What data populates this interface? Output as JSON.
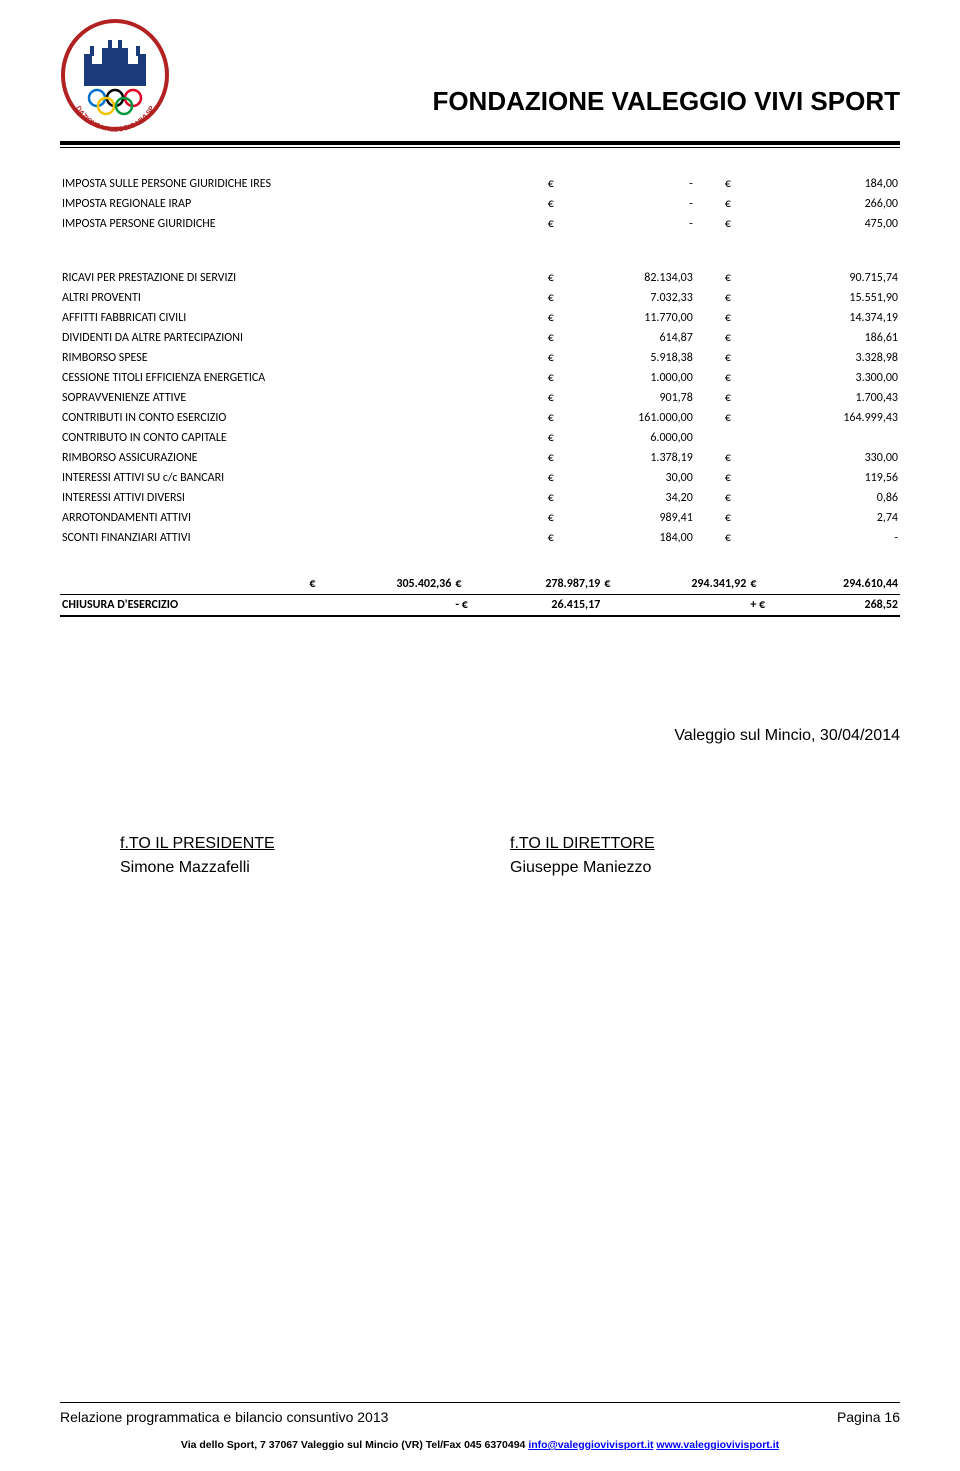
{
  "header": {
    "org_title": "FONDAZIONE VALEGGIO VIVI SPORT"
  },
  "rows_a": [
    {
      "label": "IMPOSTA SULLE PERSONE GIURIDICHE IRES",
      "c1s": "€",
      "c1": "-",
      "c2s": "€",
      "c2": "184,00"
    },
    {
      "label": "IMPOSTA REGIONALE IRAP",
      "c1s": "€",
      "c1": "-",
      "c2s": "€",
      "c2": "266,00"
    },
    {
      "label": "IMPOSTA PERSONE GIURIDICHE",
      "c1s": "€",
      "c1": "-",
      "c2s": "€",
      "c2": "475,00"
    }
  ],
  "rows_b": [
    {
      "label": "RICAVI PER PRESTAZIONE DI SERVIZI",
      "c1s": "€",
      "c1": "82.134,03",
      "c2s": "€",
      "c2": "90.715,74"
    },
    {
      "label": "ALTRI PROVENTI",
      "c1s": "€",
      "c1": "7.032,33",
      "c2s": "€",
      "c2": "15.551,90"
    },
    {
      "label": "AFFITTI FABBRICATI CIVILI",
      "c1s": "€",
      "c1": "11.770,00",
      "c2s": "€",
      "c2": "14.374,19"
    },
    {
      "label": "DIVIDENTI DA ALTRE PARTECIPAZIONI",
      "c1s": "€",
      "c1": "614,87",
      "c2s": "€",
      "c2": "186,61"
    },
    {
      "label": "RIMBORSO SPESE",
      "c1s": "€",
      "c1": "5.918,38",
      "c2s": "€",
      "c2": "3.328,98"
    },
    {
      "label": "CESSIONE TITOLI EFFICIENZA ENERGETICA",
      "c1s": "€",
      "c1": "1.000,00",
      "c2s": "€",
      "c2": "3.300,00"
    },
    {
      "label": "SOPRAVVENIENZE ATTIVE",
      "c1s": "€",
      "c1": "901,78",
      "c2s": "€",
      "c2": "1.700,43"
    },
    {
      "label": "CONTRIBUTI IN CONTO ESERCIZIO",
      "c1s": "€",
      "c1": "161.000,00",
      "c2s": "€",
      "c2": "164.999,43"
    },
    {
      "label": "CONTRIBUTO IN CONTO CAPITALE",
      "c1s": "€",
      "c1": "6.000,00",
      "c2s": "",
      "c2": ""
    },
    {
      "label": "RIMBORSO ASSICURAZIONE",
      "c1s": "€",
      "c1": "1.378,19",
      "c2s": "€",
      "c2": "330,00"
    },
    {
      "label": "INTERESSI ATTIVI SU c/c BANCARI",
      "c1s": "€",
      "c1": "30,00",
      "c2s": "€",
      "c2": "119,56"
    },
    {
      "label": "INTERESSI ATTIVI DIVERSI",
      "c1s": "€",
      "c1": "34,20",
      "c2s": "€",
      "c2": "0,86"
    },
    {
      "label": "ARROTONDAMENTI ATTIVI",
      "c1s": "€",
      "c1": "989,41",
      "c2s": "€",
      "c2": "2,74"
    },
    {
      "label": "SCONTI FINANZIARI ATTIVI",
      "c1s": "€",
      "c1": "184,00",
      "c2s": "€",
      "c2": "-"
    }
  ],
  "totals": {
    "t1s": "€",
    "t1": "305.402,36",
    "t2s": "€",
    "t2": "278.987,19",
    "t3s": "€",
    "t3": "294.341,92",
    "t4s": "€",
    "t4": "294.610,44"
  },
  "closing": {
    "label": "CHIUSURA D'ESERCIZIO",
    "c1s": "- €",
    "c1": "26.415,17",
    "c2s": "+ €",
    "c2": "268,52"
  },
  "sign": {
    "date": "Valeggio sul Mincio, 30/04/2014",
    "left_title": "f.TO IL PRESIDENTE",
    "left_name": "Simone Mazzafelli",
    "right_title": "f.TO IL DIRETTORE",
    "right_name": "Giuseppe Maniezzo"
  },
  "footer": {
    "doc_title": "Relazione programmatica e bilancio consuntivo 2013",
    "page_label": "Pagina 16",
    "address_prefix": "Via dello Sport, 7   37067 Valeggio sul Mincio (VR)   Tel/Fax 045 6370494   ",
    "email": "info@valeggiovivisport.it",
    "between": "   ",
    "url": "www.valeggiovivisport.it"
  }
}
